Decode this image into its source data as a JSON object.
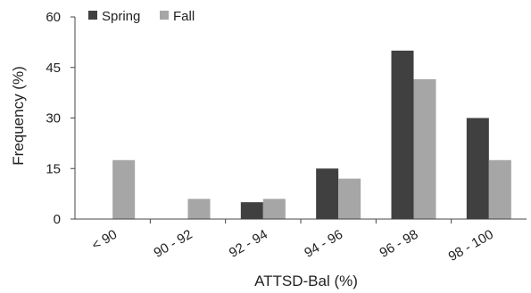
{
  "chart_data": {
    "type": "bar",
    "categories": [
      "< 90",
      "90 - 92",
      "92 - 94",
      "94 - 96",
      "96 - 98",
      "98 - 100"
    ],
    "series": [
      {
        "name": "Spring",
        "values": [
          0,
          0,
          5,
          15,
          50,
          30
        ],
        "color": "#404040"
      },
      {
        "name": "Fall",
        "values": [
          17.5,
          6,
          6,
          12,
          41.5,
          17.5
        ],
        "color": "#a6a6a6"
      }
    ],
    "title": "",
    "xlabel": "ATTSD-Bal  (%)",
    "ylabel": "Frequency (%)",
    "ylim": [
      0,
      60
    ],
    "yticks": [
      0,
      15,
      30,
      45,
      60
    ],
    "grid": false,
    "legend_position": "top-left"
  }
}
